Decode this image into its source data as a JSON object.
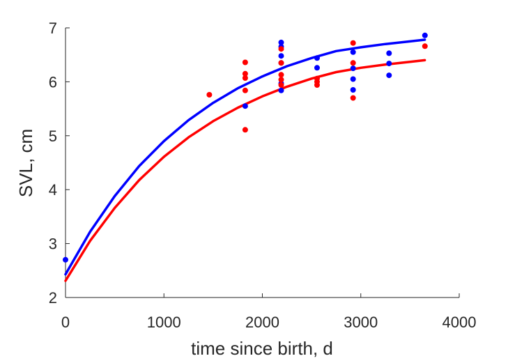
{
  "chart_data": {
    "type": "scatter",
    "xlabel": "time since birth, d",
    "ylabel": "SVL, cm",
    "xlim": [
      0,
      4000
    ],
    "ylim": [
      2,
      7
    ],
    "xticks": [
      0,
      1000,
      2000,
      3000,
      4000
    ],
    "yticks": [
      2,
      3,
      4,
      5,
      6,
      7
    ],
    "grid": false,
    "legend": "none",
    "series": [
      {
        "kind": "points",
        "color": "#0000ff",
        "points": [
          [
            0,
            2.7
          ],
          [
            1826,
            5.55
          ],
          [
            2191,
            6.73
          ],
          [
            2191,
            6.65
          ],
          [
            2191,
            6.48
          ],
          [
            2191,
            6.35
          ],
          [
            2191,
            5.97
          ],
          [
            2191,
            5.84
          ],
          [
            2556,
            6.44
          ],
          [
            2556,
            6.26
          ],
          [
            2922,
            6.55
          ],
          [
            2922,
            6.25
          ],
          [
            2922,
            6.05
          ],
          [
            2922,
            5.85
          ],
          [
            3287,
            6.53
          ],
          [
            3287,
            6.34
          ],
          [
            3287,
            6.12
          ],
          [
            3652,
            6.86
          ]
        ]
      },
      {
        "kind": "points",
        "color": "#ff0000",
        "points": [
          [
            1461,
            5.76
          ],
          [
            1826,
            6.36
          ],
          [
            1826,
            6.15
          ],
          [
            1826,
            6.07
          ],
          [
            1826,
            5.84
          ],
          [
            1826,
            5.11
          ],
          [
            2191,
            6.61
          ],
          [
            2191,
            6.35
          ],
          [
            2191,
            6.13
          ],
          [
            2191,
            6.04
          ],
          [
            2191,
            5.94
          ],
          [
            2556,
            6.06
          ],
          [
            2556,
            6.0
          ],
          [
            2556,
            5.94
          ],
          [
            2922,
            6.72
          ],
          [
            2922,
            6.35
          ],
          [
            2922,
            5.7
          ],
          [
            3652,
            6.66
          ]
        ]
      },
      {
        "kind": "curve",
        "color": "#0000ff",
        "points": [
          [
            0,
            2.43
          ],
          [
            250,
            3.22
          ],
          [
            500,
            3.88
          ],
          [
            750,
            4.44
          ],
          [
            1000,
            4.9
          ],
          [
            1250,
            5.29
          ],
          [
            1500,
            5.61
          ],
          [
            1750,
            5.88
          ],
          [
            2000,
            6.1
          ],
          [
            2250,
            6.29
          ],
          [
            2500,
            6.44
          ],
          [
            2750,
            6.57
          ],
          [
            3000,
            6.64
          ],
          [
            3250,
            6.7
          ],
          [
            3500,
            6.75
          ],
          [
            3650,
            6.78
          ]
        ]
      },
      {
        "kind": "curve",
        "color": "#ff0000",
        "points": [
          [
            0,
            2.31
          ],
          [
            250,
            3.05
          ],
          [
            500,
            3.66
          ],
          [
            750,
            4.18
          ],
          [
            1000,
            4.61
          ],
          [
            1250,
            4.97
          ],
          [
            1500,
            5.27
          ],
          [
            1750,
            5.52
          ],
          [
            2000,
            5.73
          ],
          [
            2250,
            5.91
          ],
          [
            2500,
            6.06
          ],
          [
            2750,
            6.18
          ],
          [
            3000,
            6.26
          ],
          [
            3250,
            6.32
          ],
          [
            3500,
            6.37
          ],
          [
            3650,
            6.4
          ]
        ]
      }
    ]
  }
}
